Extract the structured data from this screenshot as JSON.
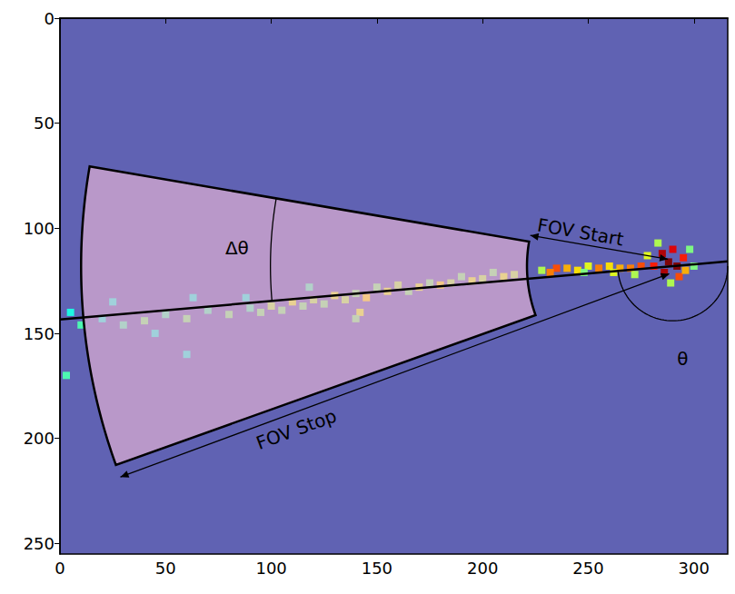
{
  "chart_data": {
    "type": "image",
    "xlim": [
      0,
      316
    ],
    "ylim": [
      255,
      0
    ],
    "xticks": [
      0,
      50,
      100,
      150,
      200,
      250,
      300
    ],
    "yticks": [
      0,
      50,
      100,
      150,
      200,
      250
    ],
    "grid": false,
    "color_range": [
      0,
      1
    ],
    "pixels": [
      [
        288,
        116,
        1.0
      ],
      [
        292,
        118,
        1.0
      ],
      [
        285,
        112,
        0.95
      ],
      [
        290,
        110,
        0.9
      ],
      [
        295,
        114,
        0.85
      ],
      [
        286,
        121,
        0.95
      ],
      [
        293,
        123,
        0.8
      ],
      [
        281,
        118,
        0.85
      ],
      [
        296,
        120,
        0.7
      ],
      [
        283,
        107,
        0.55
      ],
      [
        298,
        110,
        0.5
      ],
      [
        300,
        118,
        0.5
      ],
      [
        289,
        126,
        0.55
      ],
      [
        278,
        113,
        0.6
      ],
      [
        275,
        118,
        0.8
      ],
      [
        270,
        119,
        0.75
      ],
      [
        265,
        119,
        0.7
      ],
      [
        260,
        118,
        0.65
      ],
      [
        255,
        119,
        0.75
      ],
      [
        250,
        118,
        0.6
      ],
      [
        245,
        120,
        0.65
      ],
      [
        240,
        119,
        0.7
      ],
      [
        235,
        119,
        0.8
      ],
      [
        232,
        121,
        0.75
      ],
      [
        228,
        120,
        0.55
      ],
      [
        272,
        122,
        0.55
      ],
      [
        262,
        121,
        0.6
      ],
      [
        248,
        121,
        0.5
      ],
      [
        215,
        122,
        0.55
      ],
      [
        210,
        123,
        0.6
      ],
      [
        205,
        121,
        0.5
      ],
      [
        200,
        124,
        0.55
      ],
      [
        195,
        125,
        0.6
      ],
      [
        190,
        123,
        0.5
      ],
      [
        185,
        126,
        0.55
      ],
      [
        180,
        127,
        0.65
      ],
      [
        175,
        126,
        0.5
      ],
      [
        170,
        128,
        0.6
      ],
      [
        165,
        130,
        0.5
      ],
      [
        160,
        127,
        0.55
      ],
      [
        155,
        130,
        0.6
      ],
      [
        150,
        128,
        0.5
      ],
      [
        145,
        133,
        0.65
      ],
      [
        142,
        140,
        0.6
      ],
      [
        140,
        131,
        0.5
      ],
      [
        135,
        134,
        0.55
      ],
      [
        130,
        132,
        0.6
      ],
      [
        125,
        136,
        0.5
      ],
      [
        120,
        134,
        0.55
      ],
      [
        115,
        137,
        0.5
      ],
      [
        110,
        135,
        0.6
      ],
      [
        105,
        139,
        0.5
      ],
      [
        100,
        137,
        0.55
      ],
      [
        95,
        140,
        0.5
      ],
      [
        90,
        138,
        0.45
      ],
      [
        80,
        141,
        0.5
      ],
      [
        70,
        139,
        0.45
      ],
      [
        60,
        143,
        0.5
      ],
      [
        50,
        141,
        0.45
      ],
      [
        40,
        144,
        0.5
      ],
      [
        30,
        146,
        0.45
      ],
      [
        20,
        143,
        0.4
      ],
      [
        10,
        146,
        0.45
      ],
      [
        5,
        140,
        0.4
      ],
      [
        140,
        143,
        0.5
      ],
      [
        118,
        128,
        0.45
      ],
      [
        88,
        133,
        0.4
      ],
      [
        45,
        150,
        0.4
      ],
      [
        63,
        133,
        0.4
      ],
      [
        25,
        135,
        0.4
      ],
      [
        60,
        160,
        0.4
      ],
      [
        3,
        170,
        0.45
      ]
    ],
    "fov": {
      "center": [
        290,
        118
      ],
      "theta": 175,
      "dtheta": 29.5,
      "start": 69,
      "stop": 280
    },
    "labels": {
      "delta_theta": "Δθ",
      "theta": "θ",
      "fov_start": "FOV Start",
      "fov_stop": "FOV Stop"
    }
  }
}
